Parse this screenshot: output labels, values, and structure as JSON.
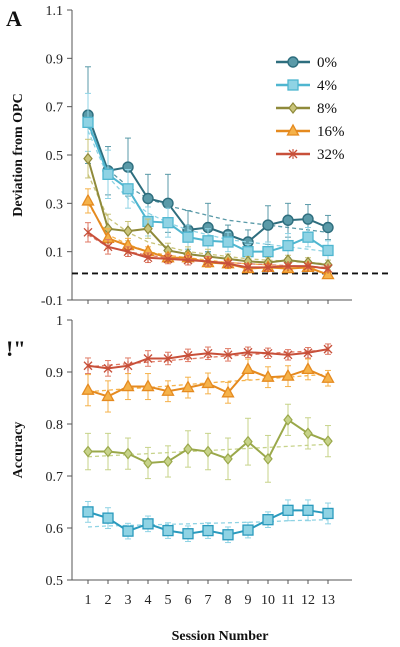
{
  "chart_data": [
    {
      "panel_label": "A",
      "type": "line",
      "ylabel": "Deviation from OPC",
      "xlabel": "",
      "ylim": [
        -0.1,
        1.1
      ],
      "yticks": [
        -0.1,
        0.1,
        0.3,
        0.5,
        0.7,
        0.9,
        1.1
      ],
      "ytick_labels": [
        "-0.1",
        "0.1",
        "0.3",
        "0.5",
        "0.7",
        "0.9",
        "1.1"
      ],
      "x": [
        1,
        2,
        3,
        4,
        5,
        6,
        7,
        8,
        9,
        10,
        11,
        12,
        13
      ],
      "reference_line": 0.01,
      "legend_position": "top-right",
      "series": [
        {
          "name": "0%",
          "color": "#2e6e7e",
          "fill": "#5a9aa8",
          "marker": "circle",
          "values": [
            0.665,
            0.435,
            0.45,
            0.32,
            0.3,
            0.19,
            0.2,
            0.17,
            0.14,
            0.21,
            0.23,
            0.235,
            0.2
          ],
          "errors": [
            0.2,
            0.1,
            0.12,
            0.1,
            0.12,
            0.08,
            0.1,
            0.04,
            0.05,
            0.08,
            0.07,
            0.06,
            0.05
          ],
          "trend": [
            0.62,
            0.44,
            0.37,
            0.32,
            0.29,
            0.27,
            0.25,
            0.23,
            0.22,
            0.21,
            0.2,
            0.19,
            0.18
          ]
        },
        {
          "name": "4%",
          "color": "#4fb6d0",
          "fill": "#8fd3e4",
          "marker": "square",
          "values": [
            0.635,
            0.42,
            0.36,
            0.225,
            0.22,
            0.16,
            0.145,
            0.14,
            0.1,
            0.1,
            0.125,
            0.16,
            0.105
          ],
          "errors": [
            0.12,
            0.1,
            0.08,
            0.06,
            0.06,
            0.05,
            0.05,
            0.04,
            0.03,
            0.04,
            0.05,
            0.04,
            0.04
          ],
          "trend": [
            0.6,
            0.41,
            0.32,
            0.26,
            0.22,
            0.19,
            0.17,
            0.15,
            0.14,
            0.13,
            0.12,
            0.11,
            0.1
          ]
        },
        {
          "name": "8%",
          "color": "#8f8a3a",
          "fill": "#c9c47a",
          "marker": "diamond",
          "values": [
            0.485,
            0.195,
            0.185,
            0.195,
            0.105,
            0.09,
            0.08,
            0.07,
            0.06,
            0.055,
            0.065,
            0.055,
            0.045
          ],
          "errors": [
            0.08,
            0.06,
            0.04,
            0.04,
            0.03,
            0.03,
            0.03,
            0.02,
            0.02,
            0.02,
            0.02,
            0.02,
            0.02
          ],
          "trend": [
            0.42,
            0.24,
            0.18,
            0.14,
            0.12,
            0.1,
            0.09,
            0.08,
            0.07,
            0.065,
            0.06,
            0.055,
            0.05
          ]
        },
        {
          "name": "16%",
          "color": "#e58a1f",
          "fill": "#f5b24a",
          "marker": "triangle",
          "values": [
            0.31,
            0.155,
            0.125,
            0.1,
            0.075,
            0.075,
            0.055,
            0.05,
            0.03,
            0.035,
            0.03,
            0.035,
            0.005
          ],
          "errors": [
            0.05,
            0.04,
            0.03,
            0.02,
            0.02,
            0.02,
            0.02,
            0.02,
            0.01,
            0.01,
            0.01,
            0.01,
            0.01
          ],
          "trend": [
            0.3,
            0.17,
            0.13,
            0.1,
            0.085,
            0.075,
            0.065,
            0.055,
            0.05,
            0.045,
            0.04,
            0.035,
            0.03
          ]
        },
        {
          "name": "32%",
          "color": "#c8503a",
          "fill": "#e07a64",
          "marker": "x",
          "values": [
            0.18,
            0.12,
            0.1,
            0.075,
            0.07,
            0.065,
            0.06,
            0.05,
            0.035,
            0.035,
            0.04,
            0.04,
            0.03
          ],
          "errors": [
            0.04,
            0.03,
            0.02,
            0.02,
            0.02,
            0.02,
            0.02,
            0.01,
            0.01,
            0.01,
            0.01,
            0.01,
            0.01
          ],
          "trend": [
            0.17,
            0.12,
            0.1,
            0.085,
            0.075,
            0.068,
            0.06,
            0.055,
            0.05,
            0.046,
            0.042,
            0.038,
            0.035
          ]
        }
      ]
    },
    {
      "panel_label": "!\"",
      "type": "line",
      "ylabel": "Accuracy",
      "xlabel": "Session Number",
      "ylim": [
        0.5,
        1.0
      ],
      "yticks": [
        0.5,
        0.6,
        0.7,
        0.8,
        0.9,
        1.0
      ],
      "ytick_labels": [
        "0.5",
        "0.6",
        "0.7",
        "0.8",
        "0.9",
        "1"
      ],
      "x": [
        1,
        2,
        3,
        4,
        5,
        6,
        7,
        8,
        9,
        10,
        11,
        12,
        13
      ],
      "xtick_labels": [
        "1",
        "2",
        "3",
        "4",
        "5",
        "6",
        "7",
        "8",
        "9",
        "10",
        "11",
        "12",
        "13"
      ],
      "series": [
        {
          "color": "#c8503a",
          "fill": "#e07a64",
          "marker": "x",
          "values": [
            0.912,
            0.907,
            0.912,
            0.926,
            0.926,
            0.932,
            0.936,
            0.933,
            0.938,
            0.936,
            0.933,
            0.937,
            0.944
          ],
          "errors": [
            0.015,
            0.015,
            0.015,
            0.015,
            0.012,
            0.012,
            0.012,
            0.012,
            0.01,
            0.01,
            0.01,
            0.01,
            0.01
          ],
          "trend": [
            0.91,
            0.913,
            0.916,
            0.919,
            0.922,
            0.925,
            0.928,
            0.931,
            0.933,
            0.936,
            0.938,
            0.94,
            0.942
          ]
        },
        {
          "color": "#e58a1f",
          "fill": "#f5b24a",
          "marker": "triangle",
          "values": [
            0.865,
            0.853,
            0.872,
            0.872,
            0.863,
            0.87,
            0.878,
            0.86,
            0.905,
            0.89,
            0.892,
            0.905,
            0.888
          ],
          "errors": [
            0.03,
            0.03,
            0.025,
            0.025,
            0.02,
            0.02,
            0.02,
            0.02,
            0.02,
            0.02,
            0.02,
            0.02,
            0.015
          ],
          "trend": [
            0.862,
            0.865,
            0.868,
            0.87,
            0.873,
            0.876,
            0.879,
            0.882,
            0.884,
            0.887,
            0.89,
            0.893,
            0.896
          ]
        },
        {
          "color": "#9aa84a",
          "fill": "#c7d38a",
          "marker": "diamond",
          "values": [
            0.747,
            0.747,
            0.743,
            0.725,
            0.728,
            0.752,
            0.747,
            0.733,
            0.766,
            0.733,
            0.808,
            0.782,
            0.767
          ],
          "errors": [
            0.035,
            0.035,
            0.03,
            0.03,
            0.03,
            0.035,
            0.035,
            0.04,
            0.045,
            0.045,
            0.03,
            0.03,
            0.03
          ],
          "trend": [
            0.737,
            0.739,
            0.741,
            0.743,
            0.745,
            0.747,
            0.749,
            0.751,
            0.753,
            0.755,
            0.757,
            0.759,
            0.761
          ]
        },
        {
          "color": "#2a9abd",
          "fill": "#8fd3e4",
          "marker": "square",
          "values": [
            0.631,
            0.619,
            0.594,
            0.608,
            0.595,
            0.589,
            0.595,
            0.587,
            0.596,
            0.616,
            0.634,
            0.634,
            0.628
          ],
          "errors": [
            0.02,
            0.02,
            0.015,
            0.015,
            0.015,
            0.015,
            0.015,
            0.015,
            0.015,
            0.015,
            0.02,
            0.02,
            0.02
          ],
          "trend": [
            0.602,
            0.604,
            0.605,
            0.606,
            0.607,
            0.608,
            0.609,
            0.61,
            0.611,
            0.612,
            0.614,
            0.615,
            0.616
          ]
        }
      ]
    }
  ]
}
